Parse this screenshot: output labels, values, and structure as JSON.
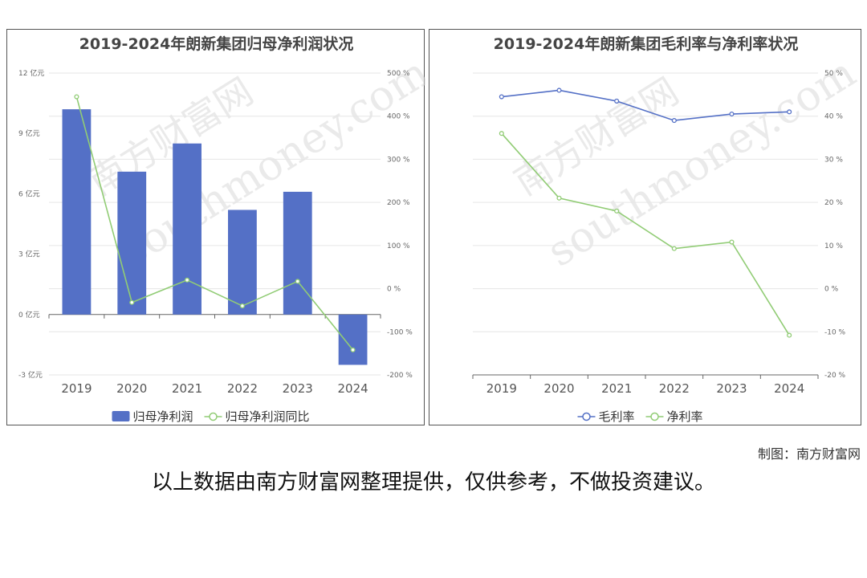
{
  "charts": [
    {
      "type": "bar+line",
      "title": "2019-2024年朗新集团归母净利润状况",
      "categories": [
        "2019",
        "2020",
        "2021",
        "2022",
        "2023",
        "2024"
      ],
      "left_axis": {
        "ticks": [
          "12 亿元",
          "9 亿元",
          "6 亿元",
          "3 亿元",
          "0 亿元",
          "-3 亿元"
        ],
        "ylim": [
          -3,
          12
        ]
      },
      "right_axis": {
        "ticks": [
          "500 %",
          "400 %",
          "300 %",
          "200 %",
          "100 %",
          "0 %",
          "-100 %",
          "-200 %"
        ],
        "ylim": [
          -200,
          500
        ]
      },
      "series": [
        {
          "name": "归母净利润",
          "kind": "bar",
          "color": "#5470c6",
          "values": [
            10.2,
            7.1,
            8.5,
            5.2,
            6.1,
            -2.5
          ]
        },
        {
          "name": "归母净利润同比",
          "kind": "line",
          "color": "#91cc75",
          "values": [
            445,
            -32,
            20,
            -40,
            17,
            -142
          ]
        }
      ],
      "legend": "bottom"
    },
    {
      "type": "line",
      "title": "2019-2024年朗新集团毛利率与净利率状况",
      "categories": [
        "2019",
        "2020",
        "2021",
        "2022",
        "2023",
        "2024"
      ],
      "right_axis": {
        "ticks": [
          "50 %",
          "40 %",
          "30 %",
          "20 %",
          "10 %",
          "0 %",
          "-10 %",
          "-20 %"
        ],
        "ylim": [
          -20,
          50
        ]
      },
      "series": [
        {
          "name": "毛利率",
          "color": "#5470c6",
          "values": [
            44.5,
            46,
            43.5,
            39,
            40.5,
            41
          ]
        },
        {
          "name": "净利率",
          "color": "#91cc75",
          "values": [
            36,
            21,
            18,
            9.3,
            10.8,
            -10.8
          ]
        }
      ],
      "legend": "bottom"
    }
  ],
  "watermark": {
    "cn": "南方财富网",
    "en": "southmoney.com"
  },
  "credit": "制图：南方财富网",
  "note": "以上数据由南方财富网整理提供，仅供参考，不做投资建议。"
}
